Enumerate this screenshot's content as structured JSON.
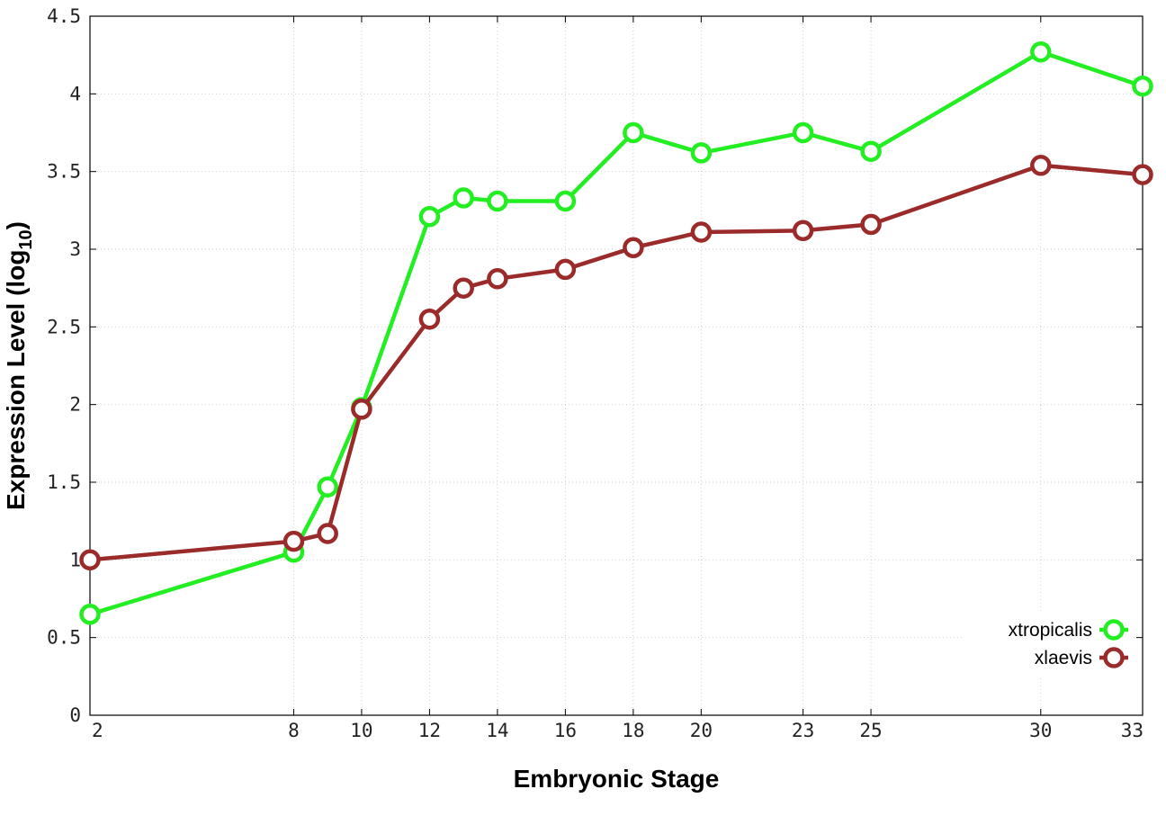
{
  "chart_data": {
    "type": "line",
    "xlabel": "Embryonic Stage",
    "ylabel": "Expression Level (log",
    "ylabel_subscript": "10",
    "ylabel_close": ")",
    "x_ticks": [
      2,
      8,
      10,
      12,
      14,
      16,
      18,
      20,
      23,
      25,
      30,
      33
    ],
    "y_ticks": [
      "0",
      "0.5",
      "1",
      "1.5",
      "2",
      "2.5",
      "3",
      "3.5",
      "4",
      "4.5"
    ],
    "xlim": [
      2,
      33
    ],
    "ylim": [
      0,
      4.5
    ],
    "grid": true,
    "legend_position": "bottom-right",
    "series": [
      {
        "name": "xtropicalis",
        "color": "#22ee22",
        "x": [
          2,
          8,
          9,
          10,
          12,
          13,
          14,
          16,
          18,
          20,
          23,
          25,
          30,
          33
        ],
        "y": [
          0.65,
          1.05,
          1.47,
          1.98,
          3.21,
          3.33,
          3.31,
          3.31,
          3.75,
          3.62,
          3.75,
          3.63,
          4.27,
          4.05
        ]
      },
      {
        "name": "xlaevis",
        "color": "#9b2a2a",
        "x": [
          2,
          8,
          9,
          10,
          12,
          13,
          14,
          16,
          18,
          20,
          23,
          25,
          30,
          33
        ],
        "y": [
          1.0,
          1.12,
          1.17,
          1.97,
          2.55,
          2.75,
          2.81,
          2.87,
          3.01,
          3.11,
          3.12,
          3.16,
          3.54,
          3.48
        ]
      }
    ]
  }
}
